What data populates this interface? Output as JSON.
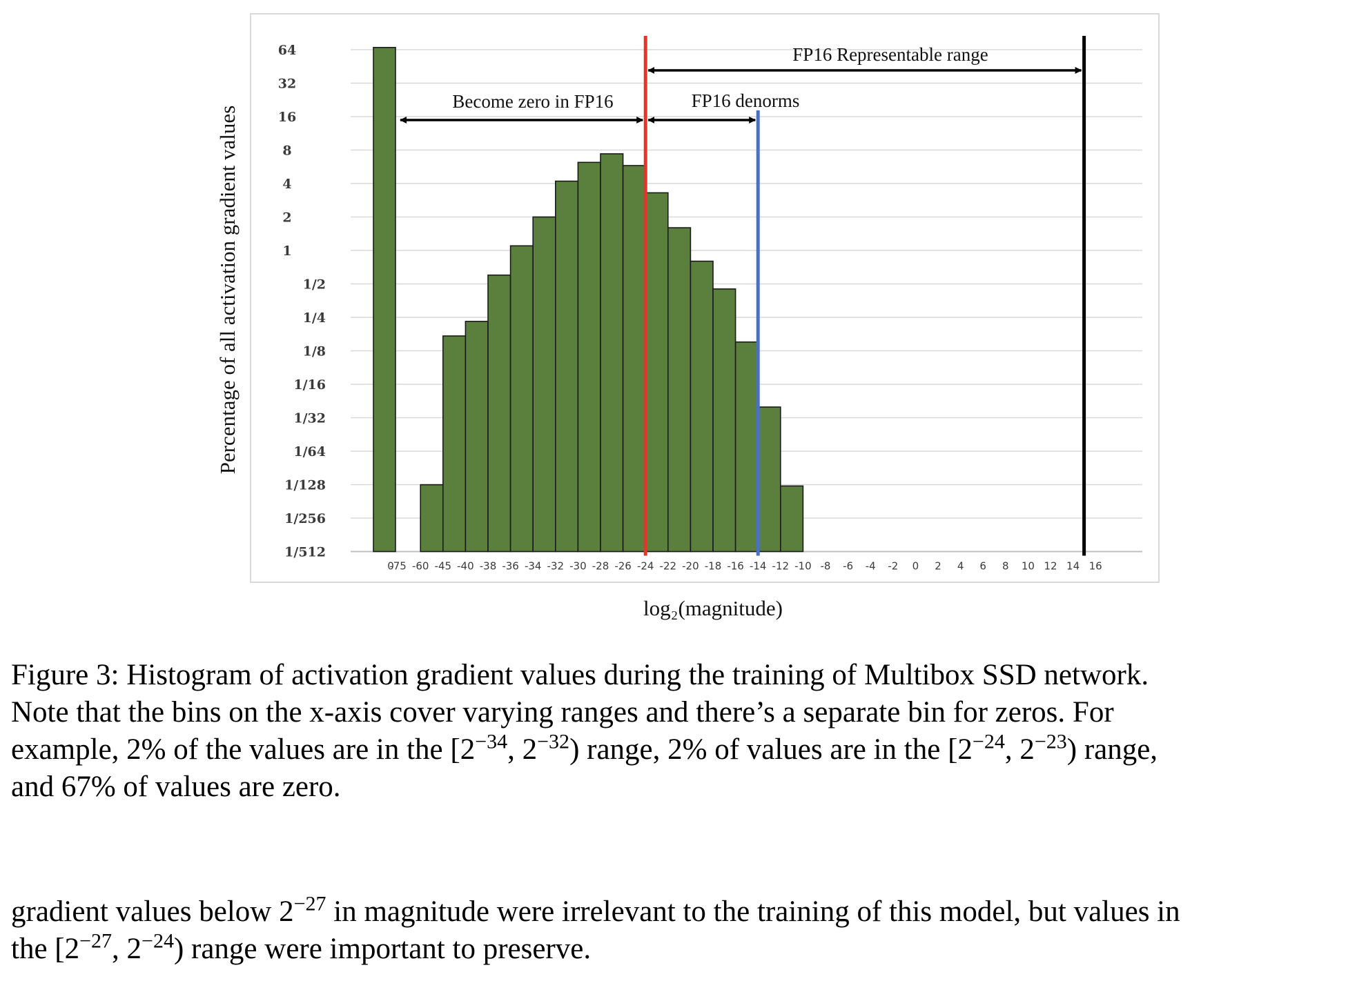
{
  "chart_data": {
    "type": "bar",
    "ylabel": "Percentage of all activation gradient values",
    "xlabel": "log₂(magnitude)",
    "y_scale": "log2",
    "y_ticks": [
      "64",
      "32",
      "16",
      "8",
      "4",
      "2",
      "1",
      "1/2",
      "1/4",
      "1/8",
      "1/16",
      "1/32",
      "1/64",
      "1/128",
      "1/256",
      "1/512"
    ],
    "ylim": [
      "1/512",
      "64"
    ],
    "x_tick_labels": [
      "0",
      "-75",
      "-60",
      "-45",
      "-40",
      "-38",
      "-36",
      "-34",
      "-32",
      "-30",
      "-28",
      "-26",
      "-24",
      "-22",
      "-20",
      "-18",
      "-16",
      "-14",
      "-12",
      "-10",
      "-8",
      "-6",
      "-4",
      "-2",
      "0",
      "2",
      "4",
      "6",
      "8",
      "10",
      "12",
      "14",
      "16"
    ],
    "bars": [
      {
        "bin_start": "0",
        "value": 67
      },
      {
        "bin_start": "-60",
        "value": 0.0078
      },
      {
        "bin_start": "-45",
        "value": 0.17
      },
      {
        "bin_start": "-40",
        "value": 0.23
      },
      {
        "bin_start": "-38",
        "value": 0.6
      },
      {
        "bin_start": "-36",
        "value": 1.1
      },
      {
        "bin_start": "-34",
        "value": 2.0
      },
      {
        "bin_start": "-32",
        "value": 4.2
      },
      {
        "bin_start": "-30",
        "value": 6.2
      },
      {
        "bin_start": "-28",
        "value": 7.4
      },
      {
        "bin_start": "-26",
        "value": 5.8
      },
      {
        "bin_start": "-24",
        "value": 3.3
      },
      {
        "bin_start": "-22",
        "value": 1.6
      },
      {
        "bin_start": "-20",
        "value": 0.8
      },
      {
        "bin_start": "-18",
        "value": 0.45
      },
      {
        "bin_start": "-16",
        "value": 0.15
      },
      {
        "bin_start": "-14",
        "value": 0.039
      },
      {
        "bin_start": "-12",
        "value": 0.0076
      }
    ],
    "bar_color": "#5b7f3c",
    "grid": true,
    "vertical_lines": [
      {
        "at": "-24",
        "color": "#e8332b"
      },
      {
        "at": "-14",
        "color": "#4a72c0"
      },
      {
        "at": "15",
        "color": "#000000"
      }
    ],
    "annotations": [
      {
        "text": "FP16 Representable range",
        "from": "-24",
        "to": "15"
      },
      {
        "text": "Become zero in FP16",
        "from": "0",
        "to": "-24"
      },
      {
        "text": "FP16 denorms",
        "from": "-24",
        "to": "-14"
      }
    ]
  },
  "caption": {
    "line1": "Figure 3:  Histogram of activation gradient values during the training of Multibox SSD network.",
    "line2": "Note that the bins on the x-axis cover varying ranges and there’s a separate bin for zeros.  For",
    "line3_a": "example, 2% of the values are in the [2",
    "line3_e1": "−34",
    "line3_b": ", 2",
    "line3_e2": "−32",
    "line3_c": ") range, 2% of values are in the [2",
    "line3_e3": "−24",
    "line3_d": ", 2",
    "line3_e4": "−23",
    "line3_f": ") range,",
    "line4": "and 67% of values are zero."
  },
  "body_text": {
    "line1_a": "gradient values below 2",
    "line1_e1": "−27",
    "line1_b": " in magnitude were irrelevant to the training of this model, but values in",
    "line2_a": "the [2",
    "line2_e1": "−27",
    "line2_b": ", 2",
    "line2_e2": "−24",
    "line2_c": ") range were important to preserve."
  }
}
